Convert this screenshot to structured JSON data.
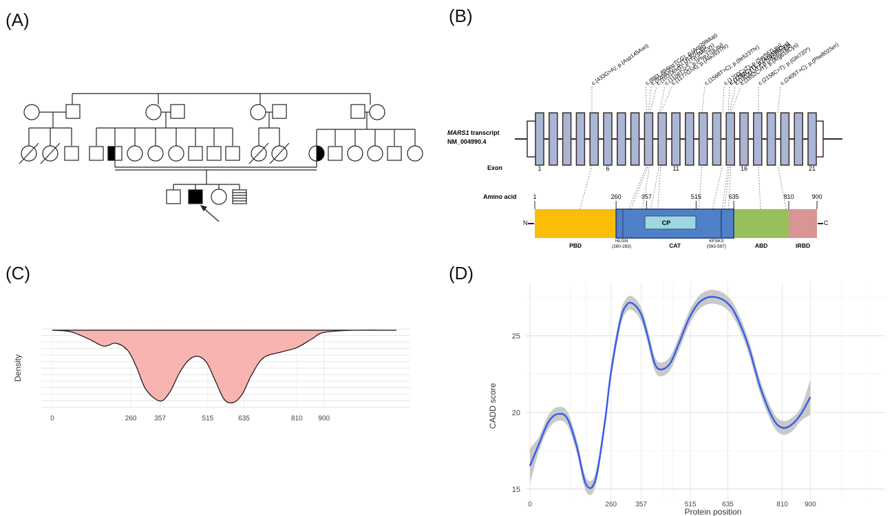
{
  "panels": {
    "a": "(A)",
    "b": "(B)",
    "c": "(C)",
    "d": "(D)"
  },
  "panel_b": {
    "transcript_name": "MARS1",
    "transcript_word": " transcript",
    "transcript_id": "NM_004990.4",
    "exon_label": "Exon",
    "exon_numbers": [
      "1",
      "6",
      "11",
      "16",
      "21"
    ],
    "amino_acid_label": "Amino acid",
    "aa_ticks": [
      "1",
      "260",
      "357",
      "515",
      "635",
      "810",
      "900"
    ],
    "n_term": "N",
    "c_term": "C",
    "cp_label": "CP",
    "motifs": [
      {
        "name": "HLGN",
        "range": "(280-283)"
      },
      {
        "name": "KFSKS",
        "range": "(593-597)"
      }
    ],
    "domains": [
      {
        "label": "PBD",
        "color": "#fbbd08"
      },
      {
        "label": "CAT",
        "color": "#4f81c8"
      },
      {
        "label": "ABD",
        "color": "#97c05c"
      },
      {
        "label": "tRBD",
        "color": "#d89593"
      }
    ],
    "variants": [
      {
        "text": "c.(433G>A); p.(Asp145Asn)",
        "bold": false
      },
      {
        "text": "c.(893_894insTCG); p.(Arg299dup)",
        "bold": false
      },
      {
        "text": "c.(920A>G); p.(Tyr307Cys)",
        "bold": false
      },
      {
        "text": "c.(1031A>G); p.(Tyr344Cys)",
        "bold": false
      },
      {
        "text": "c.(1108T>C); p.(Phe370Leu)",
        "bold": false
      },
      {
        "text": "c.(1177G>A); p.(Ala393Thr)",
        "bold": false
      },
      {
        "text": "c.(1568T>C); p.(Ile523Thr)",
        "bold": false
      },
      {
        "text": "c.(1700C>T); p.(Ser567Leu)",
        "bold": false
      },
      {
        "text": "c.(1792C>T); p.(Arg598Cys)",
        "bold": true
      },
      {
        "text": "c.(1814A>T); p.(Asp605Val)",
        "bold": false
      },
      {
        "text": "c.(1852C>T); p.(Arg618Cys)",
        "bold": false
      },
      {
        "text": "c.(2158C>T); p.(Gln720*)",
        "bold": false
      },
      {
        "text": "c.(2405T>C); p.(Phe802Ser)",
        "bold": false
      }
    ]
  },
  "chart_data": [
    {
      "type": "area",
      "panel": "C",
      "title": "",
      "xlabel": "",
      "ylabel": "Density",
      "x_ticks": [
        0,
        260,
        357,
        515,
        635,
        810,
        900
      ],
      "xlim": [
        0,
        1140
      ],
      "fill_color": "#f8b4b0",
      "profile": {
        "x": [
          0,
          60,
          120,
          170,
          210,
          250,
          280,
          310,
          357,
          390,
          420,
          450,
          480,
          510,
          540,
          570,
          600,
          630,
          660,
          700,
          760,
          810,
          860,
          900,
          1000,
          1140
        ],
        "density": [
          0.0,
          0.02,
          0.12,
          0.22,
          0.18,
          0.28,
          0.52,
          0.82,
          0.98,
          0.85,
          0.6,
          0.42,
          0.36,
          0.44,
          0.7,
          0.96,
          1.0,
          0.88,
          0.62,
          0.38,
          0.3,
          0.24,
          0.12,
          0.03,
          0.0,
          0.0
        ]
      }
    },
    {
      "type": "line",
      "panel": "D",
      "title": "",
      "xlabel": "Protein position",
      "ylabel": "CADD score",
      "x_ticks": [
        0,
        260,
        357,
        515,
        635,
        810,
        900
      ],
      "y_ticks": [
        15,
        20,
        25
      ],
      "xlim": [
        0,
        1140
      ],
      "ylim": [
        14.5,
        28.5
      ],
      "line_color": "#3b5ee8",
      "band_color": "#c9c9c9",
      "grid": true,
      "series": [
        {
          "x": [
            0,
            30,
            60,
            90,
            120,
            150,
            180,
            210,
            240,
            260,
            290,
            310,
            330,
            357,
            380,
            400,
            420,
            450,
            480,
            510,
            540,
            570,
            600,
            630,
            660,
            700,
            740,
            780,
            810,
            840,
            870,
            900
          ],
          "y": [
            16.5,
            18.0,
            19.4,
            19.9,
            19.6,
            17.8,
            15.3,
            15.6,
            19.3,
            22.6,
            26.0,
            27.0,
            27.1,
            26.4,
            24.8,
            23.2,
            22.8,
            23.2,
            24.6,
            26.1,
            27.1,
            27.5,
            27.5,
            27.2,
            26.4,
            24.4,
            21.6,
            19.6,
            19.0,
            19.2,
            19.9,
            21.0
          ]
        }
      ]
    }
  ]
}
